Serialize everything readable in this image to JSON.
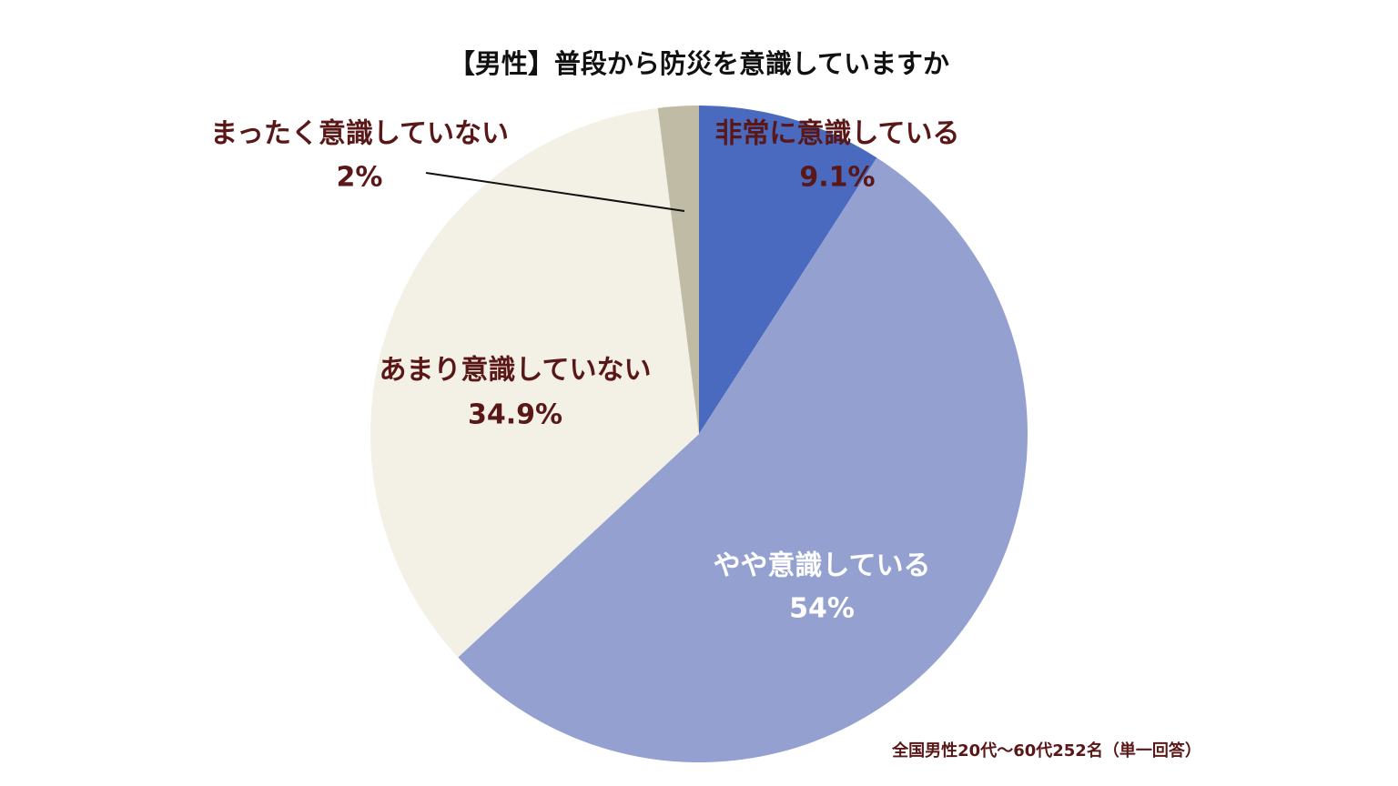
{
  "chart_data": {
    "type": "pie",
    "title": "【男性】普段から防災を意識していますか",
    "categories": [
      "非常に意識している",
      "やや意識している",
      "あまり意識していない",
      "まったく意識していない"
    ],
    "values": [
      9.1,
      54,
      34.9,
      2
    ],
    "value_labels": [
      "9.1%",
      "54%",
      "34.9%",
      "2%"
    ],
    "colors": [
      "#4a6abf",
      "#94a1d0",
      "#f3f0e6",
      "#c0bba5"
    ],
    "label_colors": [
      "#5a1717",
      "#ffffff",
      "#5a1717",
      "#5a1717"
    ],
    "note": "全国男性20代～60代252名（単一回答）"
  }
}
